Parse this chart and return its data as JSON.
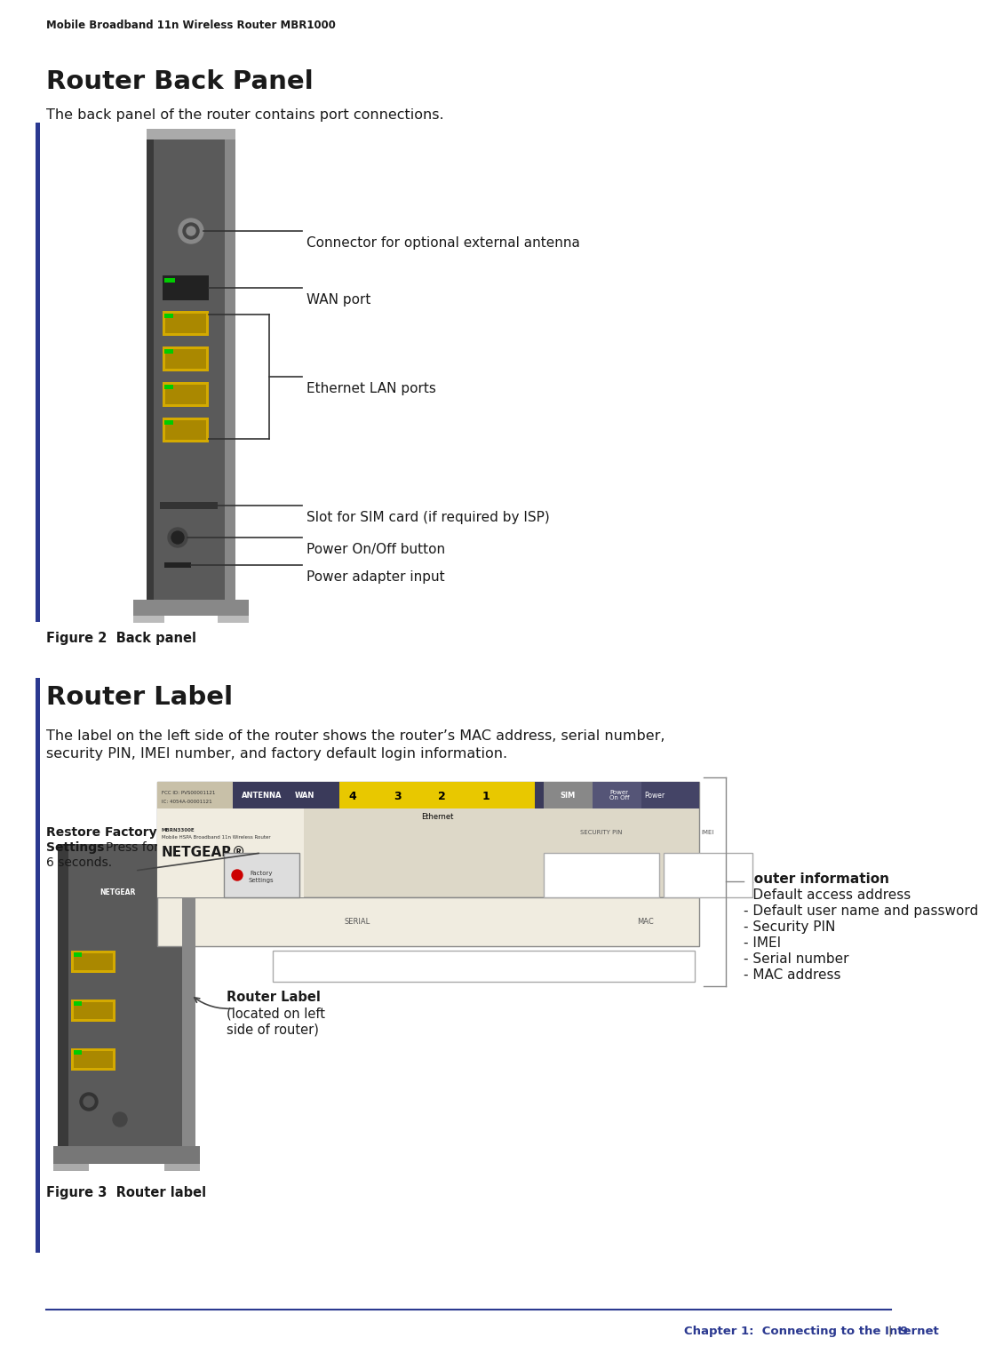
{
  "bg_color": "#ffffff",
  "header_text": "Mobile Broadband 11n Wireless Router MBR1000",
  "header_fontsize": 8.5,
  "section1_title": "Router Back Panel",
  "section1_title_fontsize": 21,
  "section1_body": "The back panel of the router contains port connections.",
  "section1_body_fontsize": 11.5,
  "figure2_caption": "Figure 2  Back panel",
  "figure2_caption_fontsize": 10.5,
  "section2_title": "Router Label",
  "section2_title_fontsize": 21,
  "section2_body1": "The label on the left side of the router shows the router’s MAC address, serial number,",
  "section2_body2": "security PIN, IMEI number, and factory default login information.",
  "section2_body_fontsize": 11.5,
  "figure3_caption": "Figure 3  Router label",
  "figure3_caption_fontsize": 10.5,
  "footer_line_color": "#2b3990",
  "footer_text": "Chapter 1:  Connecting to the Internet",
  "footer_page": "9",
  "footer_fontsize": 9.5,
  "footer_color": "#2b3990",
  "ann_labels": [
    "Connector for optional external antenna",
    "WAN port",
    "Ethernet LAN ports",
    "Slot for SIM card (if required by ISP)",
    "Power On/Off button",
    "Power adapter input"
  ],
  "ri_lines": [
    "Router information",
    "- Default access address",
    "- Default user name and password",
    "- Security PIN",
    "- IMEI",
    "- Serial number",
    "- MAC address"
  ],
  "restore_bold": "Restore Factory",
  "restore_bold2": "Settings",
  "restore_normal": ": Press for",
  "restore_normal2": "6 seconds.",
  "router_label_bold": "Router Label",
  "router_label_normal1": "(located on left",
  "router_label_normal2": "side of router)"
}
